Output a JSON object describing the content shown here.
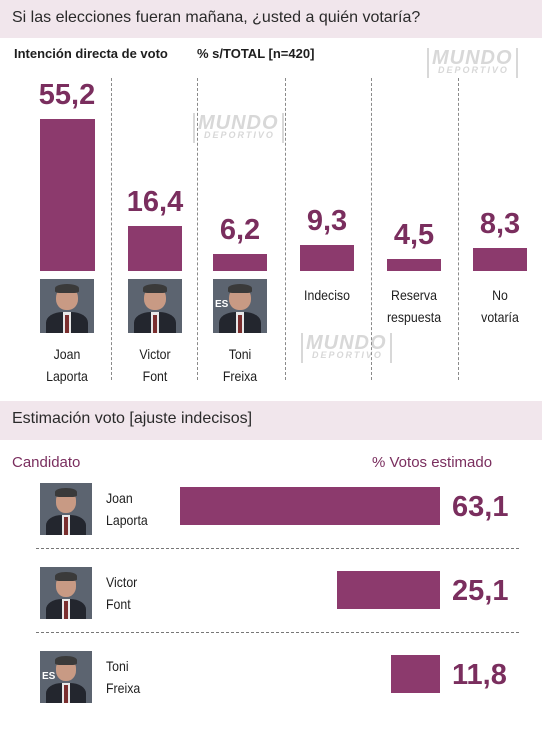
{
  "header": {
    "question": "Si las elecciones fueran mañana, ¿usted a quién votaría?"
  },
  "top_chart": {
    "subtitle_left": "Intención directa de voto",
    "subtitle_right": "% s/TOTAL [n=420]"
  },
  "watermark": {
    "line1": "MUNDO",
    "line2": "DEPORTIVO"
  },
  "photos": {
    "badge_text": "ES"
  },
  "bottom_chart": {
    "title": "Estimación voto [ajuste indecisos]",
    "col_left": "Candidato",
    "col_right": "% Votos estimado"
  },
  "chart_data": [
    {
      "type": "bar",
      "title": "Intención directa de voto",
      "ylabel": "% s/TOTAL [n=420]",
      "categories": [
        "Joan Laporta",
        "Victor Font",
        "Toni Freixa",
        "Indeciso",
        "Reserva respuesta",
        "No votaría"
      ],
      "values": [
        55.2,
        16.4,
        6.2,
        9.3,
        4.5,
        8.3
      ],
      "value_labels": [
        "55,2",
        "16,4",
        "6,2",
        "9,3",
        "4,5",
        "8,3"
      ],
      "category_lines": [
        [
          "Joan",
          "Laporta"
        ],
        [
          "Victor",
          "Font"
        ],
        [
          "Toni",
          "Freixa"
        ],
        [
          "Indeciso",
          ""
        ],
        [
          "Reserva",
          "respuesta"
        ],
        [
          "No",
          "votaría"
        ]
      ],
      "ylim": [
        0,
        55.2
      ],
      "color": "#8c3a6d"
    },
    {
      "type": "bar",
      "orientation": "horizontal",
      "title": "Estimación voto [ajuste indecisos]",
      "categories": [
        "Joan Laporta",
        "Victor Font",
        "Toni Freixa"
      ],
      "values": [
        63.1,
        25.1,
        11.8
      ],
      "value_labels": [
        "63,1",
        "25,1",
        "11,8"
      ],
      "category_lines": [
        [
          "Joan",
          "Laporta"
        ],
        [
          "Victor",
          "Font"
        ],
        [
          "Toni",
          "Freixa"
        ]
      ],
      "xlim": [
        0,
        63.1
      ],
      "color": "#8c3a6d"
    }
  ]
}
